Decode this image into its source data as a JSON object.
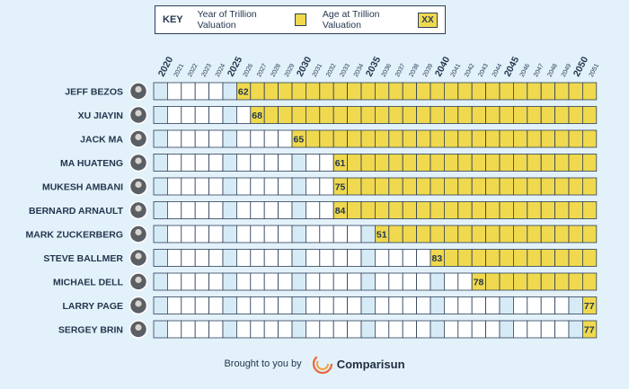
{
  "key": {
    "title": "KEY",
    "year_label": "Year of Trillion Valuation",
    "age_label": "Age at Trillion Valuation",
    "age_sample": "XX"
  },
  "footer": {
    "brought": "Brought to you by",
    "brand": "Comparisun"
  },
  "colors": {
    "fill": "#f0d94e",
    "empty": "#ffffff",
    "highlight": "#d6ebf6",
    "border": "#2b3f5a",
    "text": "#24364f"
  },
  "chart_data": {
    "type": "table",
    "title": "",
    "years": [
      2020,
      2021,
      2022,
      2023,
      2024,
      2025,
      2026,
      2027,
      2028,
      2029,
      2030,
      2031,
      2032,
      2033,
      2034,
      2035,
      2036,
      2037,
      2038,
      2039,
      2040,
      2041,
      2042,
      2043,
      2044,
      2045,
      2046,
      2047,
      2048,
      2049,
      2050,
      2051
    ],
    "major_years": [
      2020,
      2025,
      2030,
      2035,
      2040,
      2045,
      2050
    ],
    "people": [
      {
        "name": "JEFF BEZOS",
        "year": 2026,
        "age": 62
      },
      {
        "name": "XU JIAYIN",
        "year": 2027,
        "age": 68
      },
      {
        "name": "JACK MA",
        "year": 2030,
        "age": 65
      },
      {
        "name": "MA HUATENG",
        "year": 2033,
        "age": 61
      },
      {
        "name": "MUKESH AMBANI",
        "year": 2033,
        "age": 75
      },
      {
        "name": "BERNARD ARNAULT",
        "year": 2033,
        "age": 84
      },
      {
        "name": "MARK ZUCKERBERG",
        "year": 2036,
        "age": 51
      },
      {
        "name": "STEVE BALLMER",
        "year": 2040,
        "age": 83
      },
      {
        "name": "MICHAEL DELL",
        "year": 2043,
        "age": 78
      },
      {
        "name": "LARRY PAGE",
        "year": 2051,
        "age": 77
      },
      {
        "name": "SERGEY BRIN",
        "year": 2051,
        "age": 77
      }
    ]
  }
}
